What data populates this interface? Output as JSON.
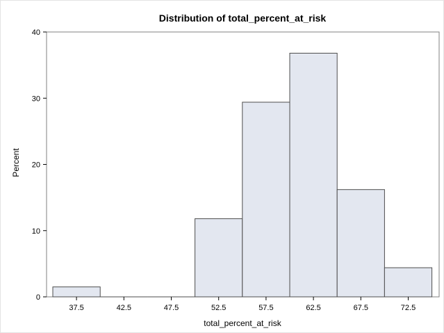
{
  "chart_data": {
    "type": "bar",
    "title": "Distribution of total_percent_at_risk",
    "xlabel": "total_percent_at_risk",
    "ylabel": "Percent",
    "categories": [
      "37.5",
      "42.5",
      "47.5",
      "52.5",
      "57.5",
      "62.5",
      "67.5",
      "72.5"
    ],
    "values": [
      1.5,
      0,
      0,
      11.8,
      29.4,
      36.8,
      16.2,
      4.4
    ],
    "bin_width": 5,
    "ylim": [
      0,
      40
    ],
    "yticks": [
      0,
      10,
      20,
      30,
      40
    ],
    "grid": false,
    "colors": {
      "bar_fill": "#e3e7f0",
      "bar_edge": "#4d4d4d"
    }
  }
}
